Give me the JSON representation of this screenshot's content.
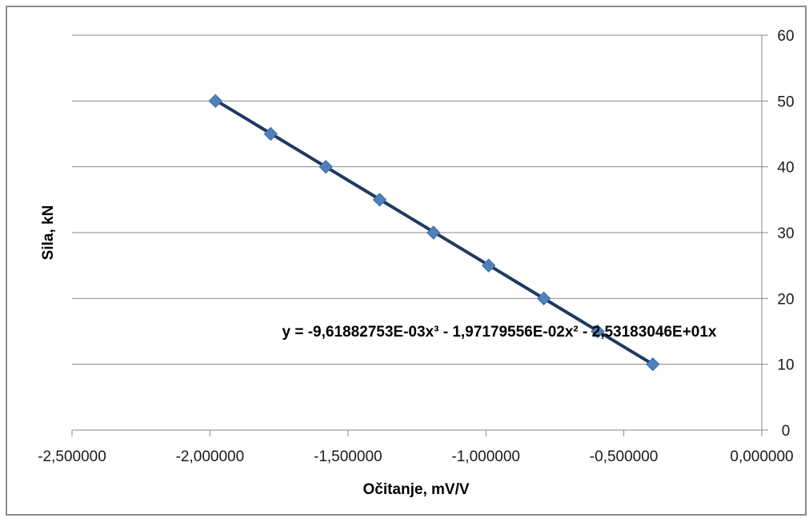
{
  "chart_data": {
    "type": "scatter",
    "title": "",
    "xlabel": "Očitanje, mV/V",
    "ylabel": "Sila, kN",
    "xlim": [
      -2.5,
      0
    ],
    "ylim": [
      0,
      60
    ],
    "x_ticks": [
      -2.5,
      -2.0,
      -1.5,
      -1.0,
      -0.5,
      0.0
    ],
    "x_tick_labels": [
      "-2,500000",
      "-2,000000",
      "-1,500000",
      "-1,000000",
      "-0,500000",
      "0,000000"
    ],
    "y_ticks": [
      0,
      10,
      20,
      30,
      40,
      50,
      60
    ],
    "y_tick_labels": [
      "0",
      "10",
      "20",
      "30",
      "40",
      "50",
      "60"
    ],
    "grid": "horizontal",
    "y_axis_side": "right",
    "series": [
      {
        "color": "#4f81bd",
        "marker": "diamond",
        "points": [
          {
            "x": -1.98,
            "y": 50
          },
          {
            "x": -1.78,
            "y": 45
          },
          {
            "x": -1.58,
            "y": 40
          },
          {
            "x": -1.385,
            "y": 35
          },
          {
            "x": -1.19,
            "y": 30
          },
          {
            "x": -0.99,
            "y": 25
          },
          {
            "x": -0.79,
            "y": 20
          },
          {
            "x": -0.595,
            "y": 15
          },
          {
            "x": -0.395,
            "y": 10
          }
        ]
      }
    ],
    "trendline": {
      "type": "polynomial",
      "color": "#1f3a5f",
      "equation": "y = -9,61882753E-03x³ - 1,97179556E-02x² - 2,53183046E+01x",
      "coefficients": {
        "a3": -0.00961882753,
        "a2": -0.0197179556,
        "a1": -25.3183046,
        "a0": 0
      },
      "x_range": [
        -1.98,
        -0.395
      ]
    }
  }
}
